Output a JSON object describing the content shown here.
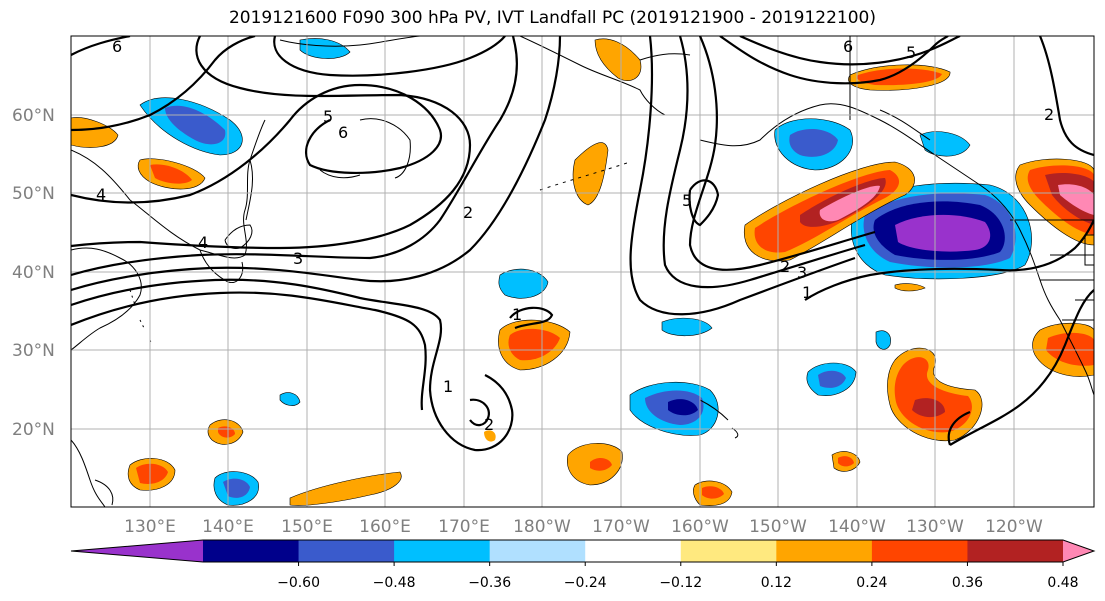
{
  "title": "2019121600 F090 300 hPa PV, IVT Landfall PC (2019121900 - 2019122100)",
  "latitude_labels": [
    "60°N",
    "50°N",
    "40°N",
    "30°N",
    "20°N"
  ],
  "longitude_labels": [
    "130°E",
    "140°E",
    "150°E",
    "160°E",
    "170°E",
    "180°W",
    "170°W",
    "160°W",
    "150°W",
    "140°W",
    "130°W",
    "120°W"
  ],
  "colorbar": {
    "tick_labels": [
      "−0.60",
      "−0.48",
      "−0.36",
      "−0.24",
      "−0.12",
      "0.12",
      "0.24",
      "0.36",
      "0.48",
      "0.60"
    ],
    "colors": [
      "#9932cc",
      "#00008b",
      "#3a5bcc",
      "#00bfff",
      "#b0e0ff",
      "#ffffff",
      "#ffe97f",
      "#ffa500",
      "#ff4500",
      "#b22222",
      "#ff88b4"
    ]
  },
  "contour_labels": [
    "6",
    "5",
    "6",
    "4",
    "4",
    "3",
    "2",
    "1",
    "1",
    "2",
    "6",
    "5",
    "5",
    "2",
    "3",
    "1",
    "2"
  ],
  "map": {
    "projection": "cylindrical",
    "lat_range": [
      "10°N",
      "70°N"
    ],
    "lon_range": [
      "120°E",
      "110°W"
    ],
    "contour_field": "300 hPa PV",
    "shaded_field": "IVT Landfall PC"
  }
}
